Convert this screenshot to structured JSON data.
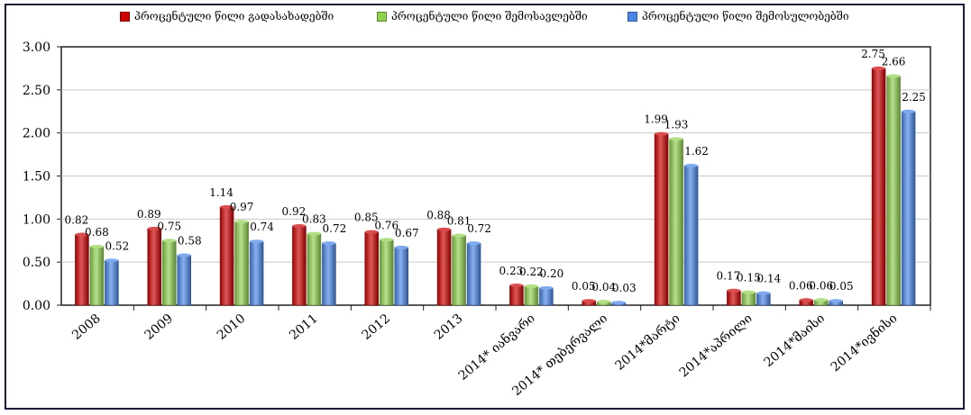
{
  "chart_data": {
    "type": "bar",
    "categories": [
      "2008",
      "2009",
      "2010",
      "2011",
      "2012",
      "2013",
      "2014* იანვარი",
      "2014* თებერვალი",
      "2014*მარტი",
      "2014*აპრილი",
      "2014*მაისი",
      "2014*ივნისი"
    ],
    "series": [
      {
        "name": "პროცენტული წილი გადასახადებში",
        "color": "#cc0000",
        "values": [
          0.82,
          0.89,
          1.14,
          0.92,
          0.85,
          0.88,
          0.23,
          0.05,
          1.99,
          0.17,
          0.06,
          2.75
        ]
      },
      {
        "name": "პროცენტული წილი შემოსავლებში",
        "color": "#8fd14f",
        "values": [
          0.68,
          0.75,
          0.97,
          0.83,
          0.76,
          0.81,
          0.22,
          0.04,
          1.93,
          0.15,
          0.06,
          2.66
        ]
      },
      {
        "name": "პროცენტული წილი შემოსულობებში",
        "color": "#4a86e8",
        "values": [
          0.52,
          0.58,
          0.74,
          0.72,
          0.67,
          0.72,
          0.2,
          0.03,
          1.62,
          0.14,
          0.05,
          2.25
        ]
      }
    ],
    "ylim": [
      0,
      3
    ],
    "yticks": [
      "0.00",
      "0.50",
      "1.00",
      "1.50",
      "2.00",
      "2.50",
      "3.00"
    ],
    "ytick_values": [
      0,
      0.5,
      1,
      1.5,
      2,
      2.5,
      3
    ],
    "legend_position": "top",
    "grid": true,
    "title": "",
    "xlabel": "",
    "ylabel": ""
  }
}
